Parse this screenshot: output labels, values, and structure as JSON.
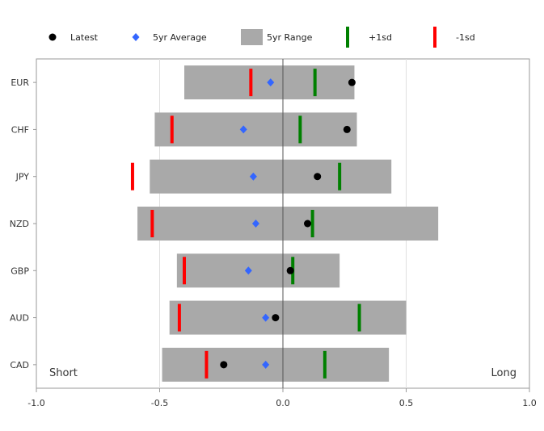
{
  "chart_data": {
    "type": "range-dot",
    "legend": [
      {
        "label": "Latest",
        "marker": "dot",
        "color": "#000000"
      },
      {
        "label": "5yr Average",
        "marker": "diamond",
        "color": "#3366ff"
      },
      {
        "label": "5yr Range",
        "marker": "bar",
        "color": "#a9a9a9"
      },
      {
        "label": "+1sd",
        "marker": "vline",
        "color": "#008000"
      },
      {
        "label": "-1sd",
        "marker": "vline",
        "color": "#ff0000"
      }
    ],
    "legend_position": "top",
    "categories": [
      "EUR",
      "CHF",
      "JPY",
      "NZD",
      "GBP",
      "AUD",
      "CAD"
    ],
    "series": {
      "range_min": [
        -0.4,
        -0.52,
        -0.54,
        -0.59,
        -0.43,
        -0.46,
        -0.49
      ],
      "range_max": [
        0.29,
        0.3,
        0.44,
        0.63,
        0.23,
        0.5,
        0.43
      ],
      "latest": [
        0.28,
        0.26,
        0.14,
        0.1,
        0.03,
        -0.03,
        -0.24
      ],
      "average": [
        -0.05,
        -0.16,
        -0.12,
        -0.11,
        -0.14,
        -0.07,
        -0.07
      ],
      "plus_1sd": [
        0.13,
        0.07,
        0.23,
        0.12,
        0.04,
        0.31,
        0.17
      ],
      "minus_1sd": [
        -0.13,
        -0.45,
        -0.61,
        -0.53,
        -0.4,
        -0.42,
        -0.31
      ]
    },
    "xlim": [
      -1.0,
      1.0
    ],
    "xticks": [
      -1.0,
      -0.5,
      0.0,
      0.5,
      1.0
    ],
    "xtick_labels": [
      "-1.0",
      "-0.5",
      "0.0",
      "0.5",
      "1.0"
    ],
    "annotations": {
      "left": "Short",
      "right": "Long"
    },
    "colors": {
      "latest": "#000000",
      "average": "#3366ff",
      "range": "#a9a9a9",
      "plus_1sd": "#008000",
      "minus_1sd": "#ff0000",
      "grid": "#e0e0e0",
      "axis": "#999999",
      "zero_line": "#555555"
    },
    "grid": true
  }
}
